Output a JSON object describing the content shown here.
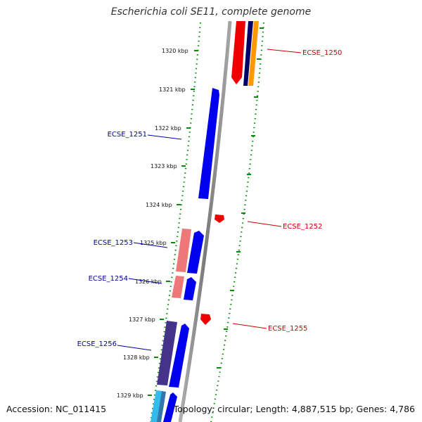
{
  "title": "Escherichia coli SE11, complete genome",
  "accession": "Accession: NC_011415",
  "summary": "Topology: circular; Length: 4,887,515 bp; Genes: 4,786",
  "colors": {
    "backbone": "#8a8a8a",
    "tick": "#0a8a0a",
    "gene_blue": "#0000ee",
    "gene_red": "#ee0000",
    "gene_pink": "#ee7777",
    "gene_navy": "#000066",
    "gene_orange": "#ff9900",
    "gene_purple": "#443388",
    "gene_cyan": "#33bbee",
    "label_forward": "#000099",
    "label_reverse": "#cc0000"
  },
  "ticks": [
    "1320 kbp",
    "1321 kbp",
    "1322 kbp",
    "1323 kbp",
    "1324 kbp",
    "1325 kbp",
    "1326 kbp",
    "1327 kbp",
    "1328 kbp",
    "1329 kbp"
  ],
  "gene_labels": [
    {
      "text": "ECSE_1250",
      "strand": "reverse"
    },
    {
      "text": "ECSE_1251",
      "strand": "forward"
    },
    {
      "text": "ECSE_1252",
      "strand": "reverse"
    },
    {
      "text": "ECSE_1253",
      "strand": "forward"
    },
    {
      "text": "ECSE_1254",
      "strand": "forward"
    },
    {
      "text": "ECSE_1255",
      "strand": "reverse"
    },
    {
      "text": "ECSE_1256",
      "strand": "forward"
    }
  ]
}
